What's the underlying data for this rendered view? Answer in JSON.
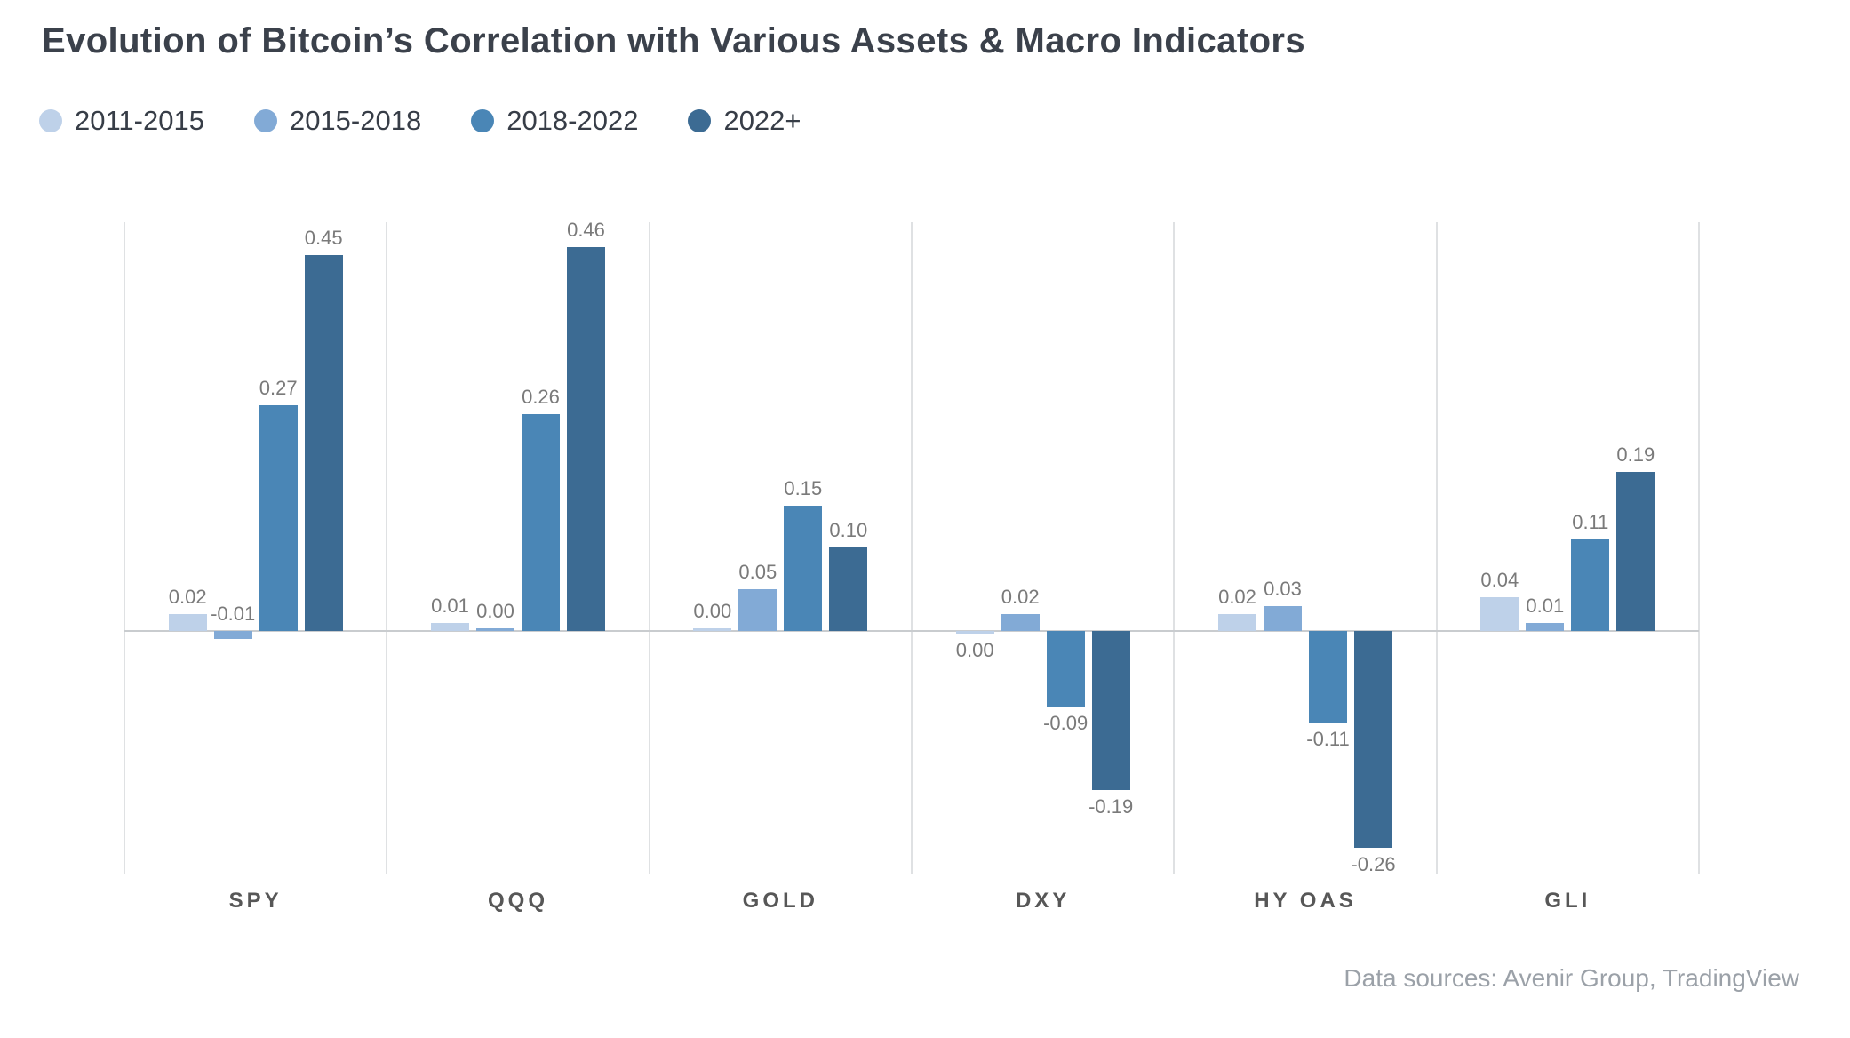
{
  "title": "Evolution of Bitcoin’s Correlation with Various Assets & Macro Indicators",
  "footer": "Data sources: Avenir Group, TradingView",
  "colors": {
    "background": "#ffffff",
    "title_text": "#3b414b",
    "value_label_text": "#7a7a7a",
    "category_label_text": "#575757",
    "footer_text": "#9ba1a8",
    "gridline": "#dfe1e3",
    "zero_line": "#c9cccf"
  },
  "chart_data": {
    "type": "bar",
    "title": "Evolution of Bitcoin’s Correlation with Various Assets & Macro Indicators",
    "categories": [
      "SPY",
      "QQQ",
      "GOLD",
      "DXY",
      "HY OAS",
      "GLI"
    ],
    "series": [
      {
        "name": "2011-2015",
        "color": "#bed1e9",
        "values": [
          0.02,
          0.01,
          0.0,
          0.0,
          0.02,
          0.04
        ]
      },
      {
        "name": "2015-2018",
        "color": "#82aad6",
        "values": [
          -0.01,
          0.0,
          0.05,
          0.02,
          0.03,
          0.01
        ]
      },
      {
        "name": "2018-2022",
        "color": "#4a86b6",
        "values": [
          0.27,
          0.26,
          0.15,
          -0.09,
          -0.11,
          0.11
        ]
      },
      {
        "name": "2022+",
        "color": "#3c6b93",
        "values": [
          0.45,
          0.46,
          0.1,
          -0.19,
          -0.26,
          0.19
        ]
      }
    ],
    "value_label_format": "0.00",
    "label_side": [
      [
        "above",
        "above",
        "above",
        "above"
      ],
      [
        "above",
        "above",
        "above",
        "above"
      ],
      [
        "above",
        "above",
        "above",
        "above"
      ],
      [
        "below",
        "above",
        "below",
        "below"
      ],
      [
        "above",
        "above",
        "below",
        "below"
      ],
      [
        "above",
        "above",
        "above",
        "above"
      ]
    ],
    "ylim": [
      -0.3,
      0.49
    ],
    "baseline": 0,
    "grid": "vertical-only",
    "y_axis_ticks_visible": false,
    "legend_position": "top-left",
    "data_labels": "outside-end"
  }
}
